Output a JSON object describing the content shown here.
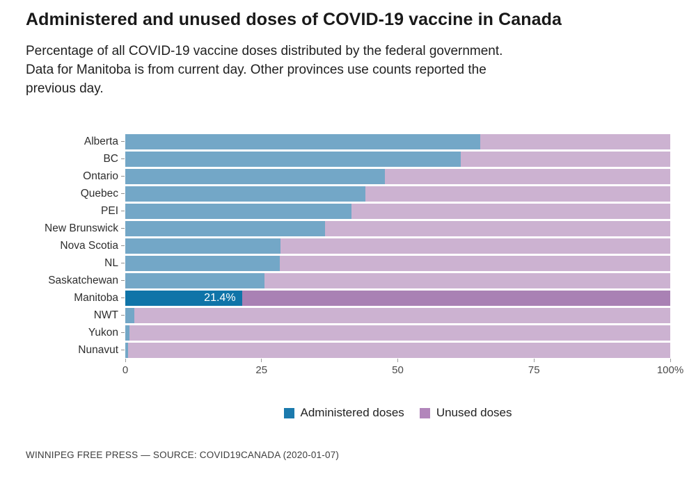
{
  "header": {
    "title": "Administered and unused doses of COVID-19 vaccine in Canada",
    "subtitle_lines": [
      "Percentage of all COVID-19 vaccine doses distributed by the federal government.",
      "Data for Manitoba is from current day. Other provinces use counts reported the",
      "previous day."
    ]
  },
  "chart_data": {
    "type": "bar",
    "orientation": "horizontal",
    "stacked": true,
    "categories": [
      "Alberta",
      "BC",
      "Ontario",
      "Quebec",
      "PEI",
      "New Brunswick",
      "Nova Scotia",
      "NL",
      "Saskatchewan",
      "Manitoba",
      "NWT",
      "Yukon",
      "Nunavut"
    ],
    "series": [
      {
        "name": "Administered doses",
        "values": [
          65.1,
          61.5,
          47.7,
          44.0,
          41.5,
          36.7,
          28.5,
          28.3,
          25.5,
          21.4,
          1.7,
          0.8,
          0.5
        ]
      },
      {
        "name": "Unused doses",
        "values": [
          34.9,
          38.5,
          52.3,
          56.0,
          58.5,
          63.3,
          71.5,
          71.7,
          74.5,
          78.6,
          98.3,
          99.2,
          99.5
        ]
      }
    ],
    "highlight_category": "Manitoba",
    "bar_label": {
      "category": "Manitoba",
      "text": "21.4%"
    },
    "x_axis": {
      "range": [
        0,
        100
      ],
      "ticks": [
        0,
        25,
        50,
        75,
        100
      ],
      "tick_labels": [
        "0",
        "25",
        "50",
        "75",
        "100%"
      ],
      "grid": false
    },
    "legend": {
      "position": "bottom-center"
    },
    "colors": {
      "administered": "#73a7c7",
      "unused": "#ccb2d1",
      "administered_highlight": "#0f74a8",
      "unused_highlight": "#a981b4",
      "legend_administered": "#1b7aad",
      "legend_unused": "#b286bb",
      "bar_value_label": "#ffffff"
    }
  },
  "footer": {
    "source": "WINNIPEG FREE PRESS — SOURCE: COVID19CANADA (2020-01-07)"
  }
}
